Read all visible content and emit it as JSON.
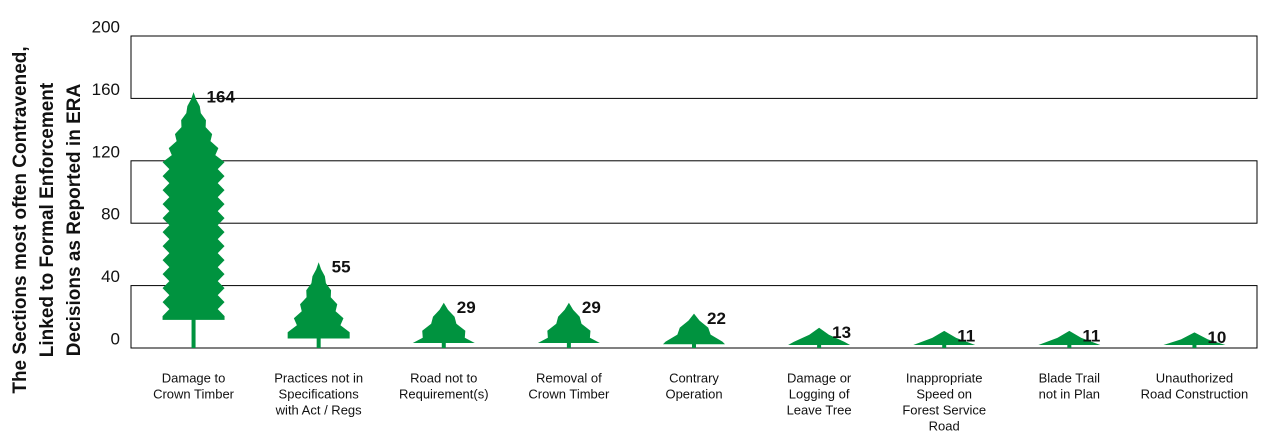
{
  "chart_data": {
    "type": "pictograph",
    "ylabel": [
      "The Sections most often Contravened,",
      "Linked to Formal Enforcement",
      "Decisions as Reported in ERA"
    ],
    "categories": [
      [
        "Damage to",
        "Crown Timber"
      ],
      [
        "Practices not in",
        "Specifications",
        "with Act / Regs"
      ],
      [
        "Road not to",
        "Requirement(s)"
      ],
      [
        "Removal of",
        "Crown Timber"
      ],
      [
        "Contrary",
        "Operation"
      ],
      [
        "Damage or",
        "Logging of",
        "Leave Tree"
      ],
      [
        "Inappropriate",
        "Speed on",
        "Forest Service",
        "Road"
      ],
      [
        "Blade Trail",
        "not in Plan"
      ],
      [
        "Unauthorized",
        "Road Construction"
      ]
    ],
    "values": [
      164,
      55,
      29,
      29,
      22,
      13,
      11,
      11,
      10
    ],
    "color": "#00933f",
    "ylim": [
      0,
      200
    ],
    "yticks": [
      0,
      40,
      80,
      120,
      160,
      200
    ],
    "grid": "banded"
  }
}
